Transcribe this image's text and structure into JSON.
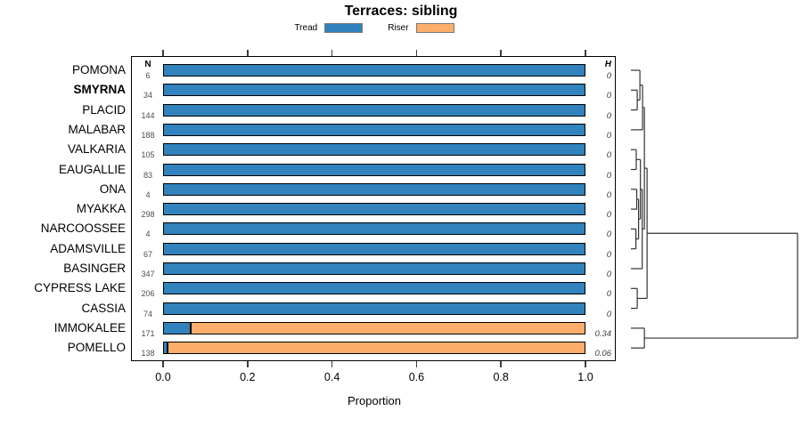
{
  "title": "Terraces: sibling",
  "legend": [
    {
      "label": "Tread",
      "color": "#3182bd"
    },
    {
      "label": "Riser",
      "color": "#fdae6b"
    }
  ],
  "chart_data": {
    "type": "bar",
    "orientation": "horizontal-stacked",
    "title": "Terraces: sibling",
    "xlabel": "Proportion",
    "xlim": [
      0,
      1
    ],
    "xticks": [
      "0.0",
      "0.2",
      "0.4",
      "0.6",
      "0.8",
      "1.0"
    ],
    "xtick_values": [
      0.0,
      0.2,
      0.4,
      0.6,
      0.8,
      1.0
    ],
    "n_column_header": "N",
    "h_column_header": "H",
    "series_names": [
      "Tread",
      "Riser"
    ],
    "rows": [
      {
        "label": "POMONA",
        "n": 6,
        "tread": 1.0,
        "riser": 0.0,
        "h": "0",
        "bold": false
      },
      {
        "label": "SMYRNA",
        "n": 34,
        "tread": 1.0,
        "riser": 0.0,
        "h": "0",
        "bold": true
      },
      {
        "label": "PLACID",
        "n": 144,
        "tread": 1.0,
        "riser": 0.0,
        "h": "0",
        "bold": false
      },
      {
        "label": "MALABAR",
        "n": 188,
        "tread": 1.0,
        "riser": 0.0,
        "h": "0",
        "bold": false
      },
      {
        "label": "VALKARIA",
        "n": 105,
        "tread": 1.0,
        "riser": 0.0,
        "h": "0",
        "bold": false
      },
      {
        "label": "EAUGALLIE",
        "n": 83,
        "tread": 1.0,
        "riser": 0.0,
        "h": "0",
        "bold": false
      },
      {
        "label": "ONA",
        "n": 4,
        "tread": 1.0,
        "riser": 0.0,
        "h": "0",
        "bold": false
      },
      {
        "label": "MYAKKA",
        "n": 298,
        "tread": 1.0,
        "riser": 0.0,
        "h": "0",
        "bold": false
      },
      {
        "label": "NARCOOSSEE",
        "n": 4,
        "tread": 1.0,
        "riser": 0.0,
        "h": "0",
        "bold": false
      },
      {
        "label": "ADAMSVILLE",
        "n": 67,
        "tread": 1.0,
        "riser": 0.0,
        "h": "0",
        "bold": false
      },
      {
        "label": "BASINGER",
        "n": 347,
        "tread": 1.0,
        "riser": 0.0,
        "h": "0",
        "bold": false
      },
      {
        "label": "CYPRESS LAKE",
        "n": 206,
        "tread": 1.0,
        "riser": 0.0,
        "h": "0",
        "bold": false
      },
      {
        "label": "CASSIA",
        "n": 74,
        "tread": 1.0,
        "riser": 0.0,
        "h": "0",
        "bold": false
      },
      {
        "label": "IMMOKALEE",
        "n": 171,
        "tread": 0.065,
        "riser": 0.935,
        "h": "0.34",
        "bold": false
      },
      {
        "label": "POMELLO",
        "n": 138,
        "tread": 0.01,
        "riser": 0.99,
        "h": "0.06",
        "bold": false
      }
    ],
    "dendrogram": {
      "leaf_order": [
        "POMONA",
        "SMYRNA",
        "PLACID",
        "MALABAR",
        "VALKARIA",
        "EAUGALLIE",
        "ONA",
        "MYAKKA",
        "NARCOOSSEE",
        "ADAMSVILLE",
        "BASINGER",
        "CYPRESS LAKE",
        "CASSIA",
        "IMMOKALEE",
        "POMELLO"
      ],
      "merges": [
        {
          "a": "L1",
          "b": "L2",
          "h": 0.038
        },
        {
          "a": "L0",
          "b": "M0",
          "h": 0.054
        },
        {
          "a": "M1",
          "b": "L3",
          "h": 0.07
        },
        {
          "a": "L4",
          "b": "L5",
          "h": 0.032
        },
        {
          "a": "L6",
          "b": "L7",
          "h": 0.035
        },
        {
          "a": "L8",
          "b": "L9",
          "h": 0.03
        },
        {
          "a": "M4",
          "b": "M5",
          "h": 0.046
        },
        {
          "a": "M3",
          "b": "M6",
          "h": 0.057
        },
        {
          "a": "M7",
          "b": "L10",
          "h": 0.068
        },
        {
          "a": "M2",
          "b": "M8",
          "h": 0.081
        },
        {
          "a": "L11",
          "b": "L12",
          "h": 0.038
        },
        {
          "a": "M9",
          "b": "M10",
          "h": 0.097
        },
        {
          "a": "L13",
          "b": "L14",
          "h": 0.081
        },
        {
          "a": "M11",
          "b": "M12",
          "h": 1.0
        }
      ]
    }
  }
}
